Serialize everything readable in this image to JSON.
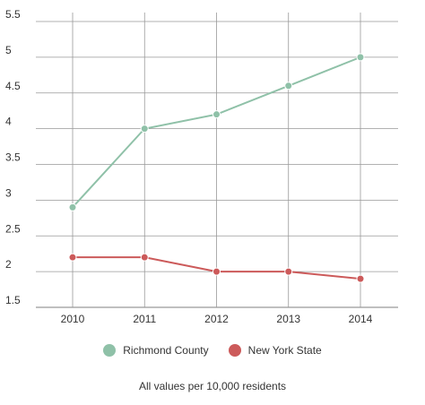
{
  "chart_data": {
    "type": "line",
    "categories": [
      "2010",
      "2011",
      "2012",
      "2013",
      "2014"
    ],
    "series": [
      {
        "name": "Richmond County",
        "color": "#8fc1a8",
        "values": [
          2.9,
          4.0,
          4.2,
          4.6,
          5.0
        ]
      },
      {
        "name": "New York State",
        "color": "#cc5a5a",
        "values": [
          2.2,
          2.2,
          2.0,
          2.0,
          1.9
        ]
      }
    ],
    "y_ticks": [
      "1.5",
      "2",
      "2.5",
      "3",
      "3.5",
      "4",
      "4.5",
      "5",
      "5.5"
    ],
    "ylim": [
      1.5,
      5.5
    ],
    "grid": true,
    "legend_position": "bottom",
    "annotation": "All values per 10,000 residents"
  }
}
